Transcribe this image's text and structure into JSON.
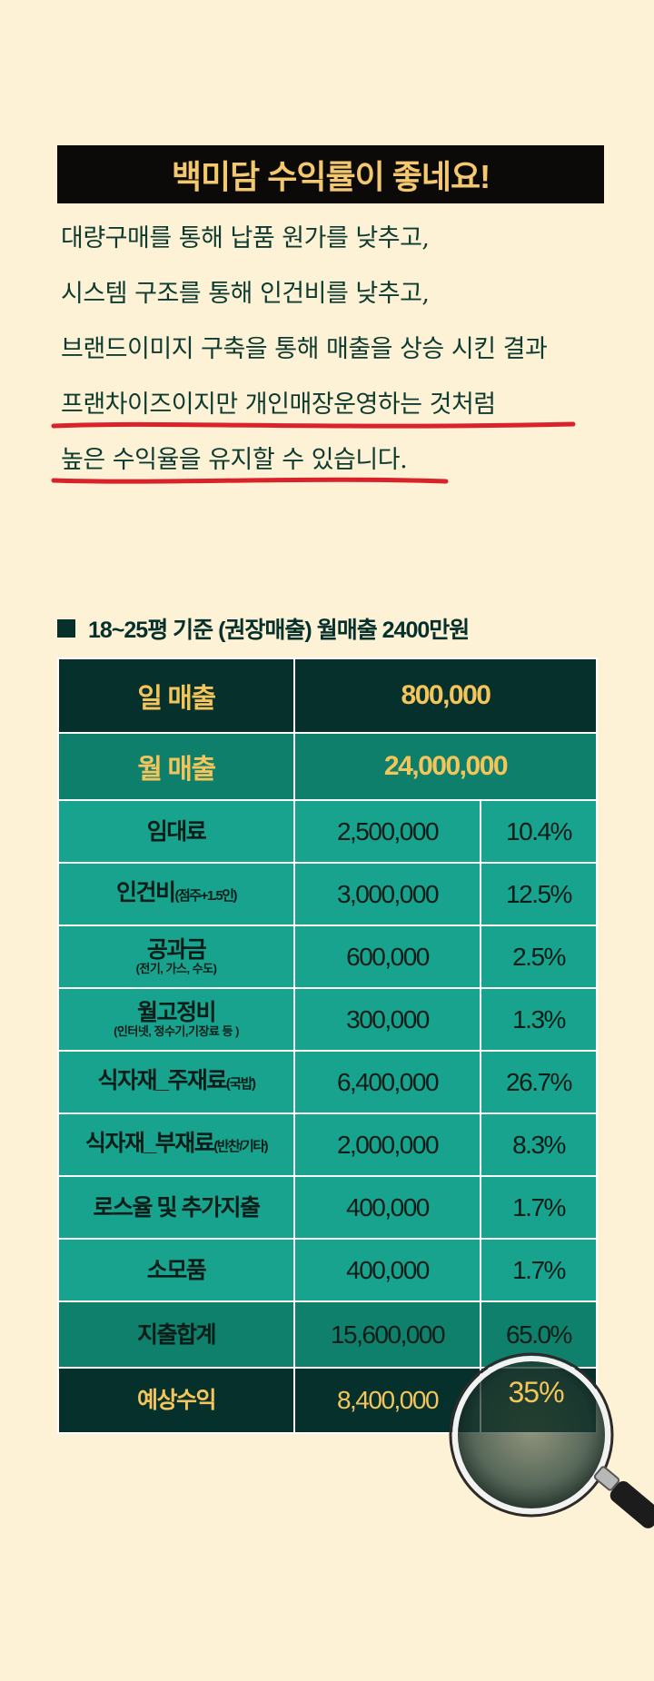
{
  "banner": {
    "title": "백미담 수익률이 좋네요!"
  },
  "intro": {
    "lines": [
      "대량구매를 통해 납품 원가를 낮추고,",
      "시스템 구조를 통해 인건비를 낮추고,",
      "브랜드이미지 구축을 통해 매출을 상승 시킨 결과",
      "프랜차이즈이지만 개인매장운영하는 것처럼",
      "높은 수익율을 유지할 수 있습니다."
    ]
  },
  "section": {
    "title": "18~25평 기준 (권장매출)  월매출 2400만원"
  },
  "table": {
    "daily": {
      "label": "일 매출",
      "value": "800,000"
    },
    "monthly": {
      "label": "월 매출",
      "value": "24,000,000"
    },
    "rows": [
      {
        "label": "임대료",
        "small": "",
        "sub": "",
        "amount": "2,500,000",
        "pct": "10.4%"
      },
      {
        "label": "인건비",
        "small": "(점주+1.5인)",
        "sub": "",
        "amount": "3,000,000",
        "pct": "12.5%"
      },
      {
        "label": "공과금",
        "small": "",
        "sub": "(전기, 가스, 수도)",
        "amount": "600,000",
        "pct": "2.5%"
      },
      {
        "label": "월고정비",
        "small": "",
        "sub": "(인터넷, 정수기,기장료 등 )",
        "amount": "300,000",
        "pct": "1.3%"
      },
      {
        "label": "식자재_주재료",
        "small": "(국밥)",
        "sub": "",
        "amount": "6,400,000",
        "pct": "26.7%"
      },
      {
        "label": "식자재_부재료",
        "small": "(반찬/기타)",
        "sub": "",
        "amount": "2,000,000",
        "pct": "8.3%"
      },
      {
        "label": "로스율 및 추가지출",
        "small": "",
        "sub": "",
        "amount": "400,000",
        "pct": "1.7%"
      },
      {
        "label": "소모품",
        "small": "",
        "sub": "",
        "amount": "400,000",
        "pct": "1.7%"
      }
    ],
    "total": {
      "label": "지출합계",
      "amount": "15,600,000",
      "pct": "65.0%"
    },
    "profit": {
      "label": "예상수익",
      "amount": "8,400,000",
      "pct": "35%"
    }
  },
  "colors": {
    "background": "#fdf1d6",
    "dark_green": "#06302b",
    "teal": "#17a38e",
    "gold": "#f4c55a",
    "underline_red": "#d8232a"
  },
  "icons": {
    "lens": "magnifying-glass-icon"
  }
}
